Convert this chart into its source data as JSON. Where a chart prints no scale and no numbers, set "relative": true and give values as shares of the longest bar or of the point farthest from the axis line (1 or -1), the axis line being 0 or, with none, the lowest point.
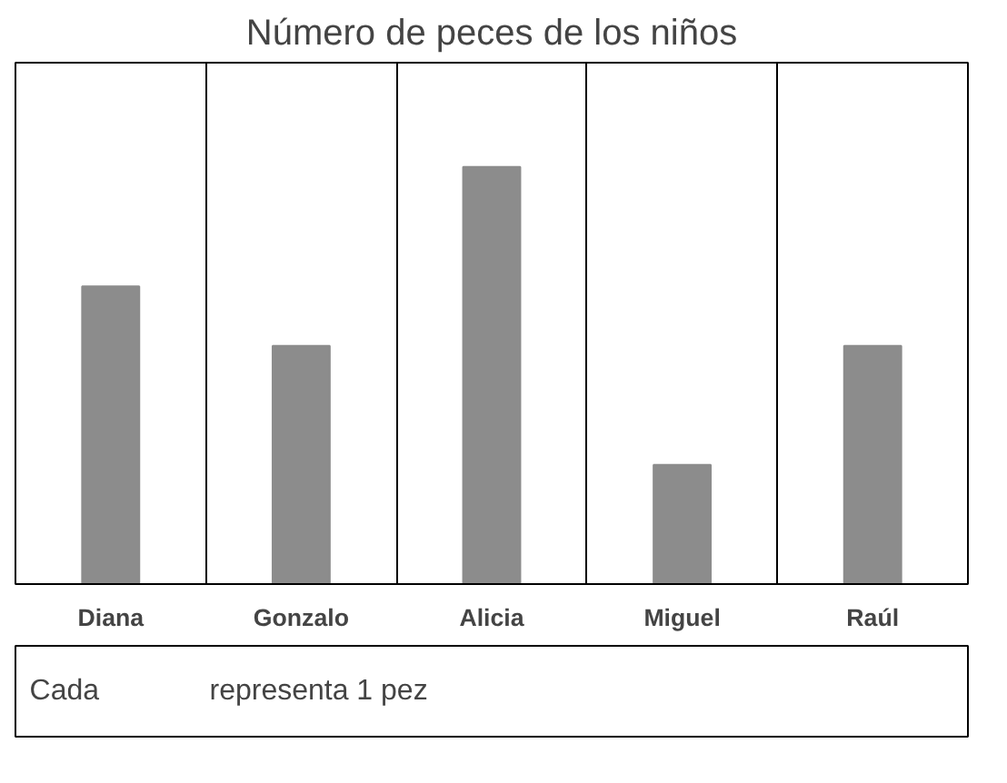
{
  "chart_data": {
    "type": "bar",
    "title": "Número de peces de los niños",
    "categories": [
      "Diana",
      "Gonzalo",
      "Alicia",
      "Miguel",
      "Raúl"
    ],
    "values": [
      0.714,
      0.571,
      1,
      0.286,
      0.571
    ],
    "relative": true,
    "color": "#8c8c8c",
    "grid": "x",
    "annotations": [
      "Cada",
      "representa 1 pez"
    ]
  }
}
